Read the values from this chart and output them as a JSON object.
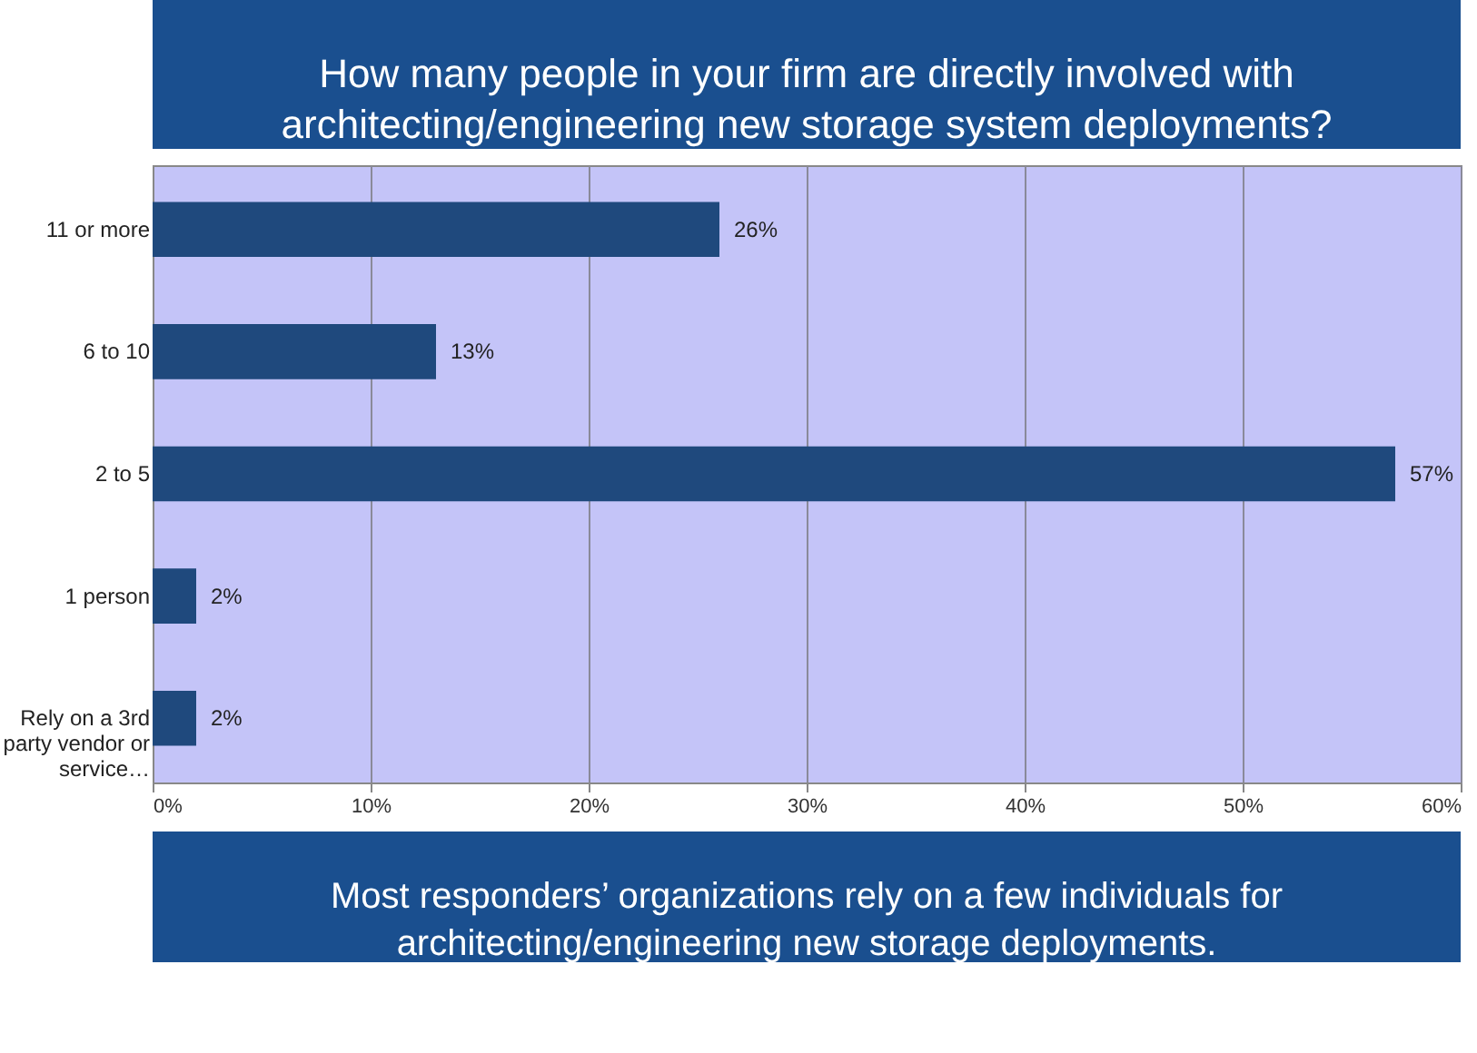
{
  "chart_data": {
    "type": "bar",
    "orientation": "horizontal",
    "title": "How many people in your firm are directly involved with architecting/engineering new storage system deployments?",
    "categories": [
      "11 or more",
      "6 to 10",
      "2 to 5",
      "1 person",
      "Rely on a 3rd party vendor or service…"
    ],
    "values": [
      26,
      13,
      57,
      2,
      2
    ],
    "value_labels": [
      "26%",
      "13%",
      "57%",
      "2%",
      "2%"
    ],
    "color": "#1f497d",
    "xlim": [
      0,
      60
    ],
    "xticks": [
      {
        "value": 0,
        "label": "0%"
      },
      {
        "value": 10,
        "label": "10%"
      },
      {
        "value": 20,
        "label": "20%"
      },
      {
        "value": 30,
        "label": "30%"
      },
      {
        "value": 40,
        "label": "40%"
      },
      {
        "value": 50,
        "label": "50%"
      },
      {
        "value": 60,
        "label": "60%"
      }
    ],
    "grid": "x",
    "annotations": [
      "Most responders’ organizations rely on a few individuals for  architecting/engineering new storage deployments."
    ]
  }
}
